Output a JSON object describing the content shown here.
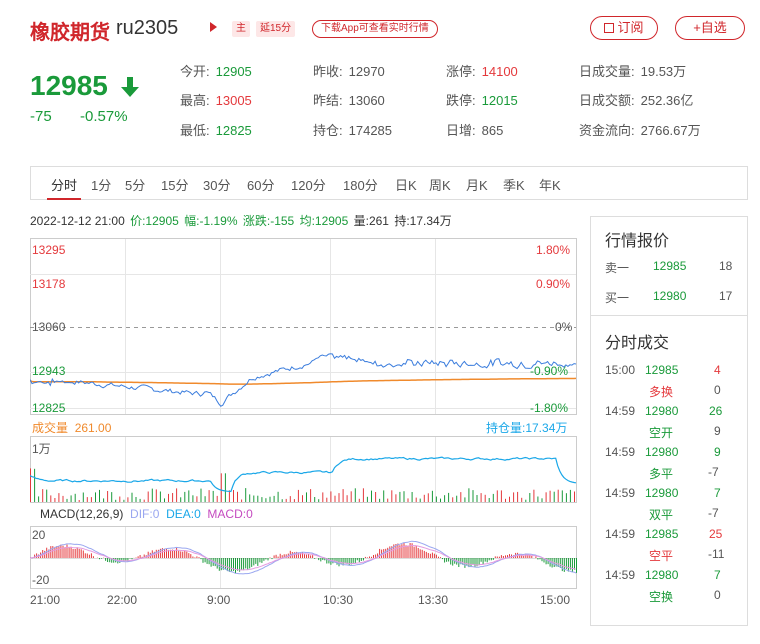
{
  "header": {
    "title": "橡胶期货",
    "code": "ru2305",
    "tag_main": "主",
    "tag_delay": "延15分",
    "download": "下载App可查看实时行情",
    "subscribe": "订阅",
    "add_watch": "+自选"
  },
  "quote": {
    "price": "12985",
    "change": "-75",
    "change_pct": "-0.57%"
  },
  "stats": [
    {
      "label": "今开:",
      "value": "12905",
      "color": "green"
    },
    {
      "label": "昨收:",
      "value": "12970",
      "color": "gray"
    },
    {
      "label": "涨停:",
      "value": "14100",
      "color": "red"
    },
    {
      "label": "日成交量:",
      "value": "19.53万",
      "color": "gray"
    },
    {
      "label": "最高:",
      "value": "13005",
      "color": "red"
    },
    {
      "label": "昨结:",
      "value": "13060",
      "color": "gray"
    },
    {
      "label": "跌停:",
      "value": "12015",
      "color": "green"
    },
    {
      "label": "日成交额:",
      "value": "252.36亿",
      "color": "gray"
    },
    {
      "label": "最低:",
      "value": "12825",
      "color": "green"
    },
    {
      "label": "持仓:",
      "value": "174285",
      "color": "gray"
    },
    {
      "label": "日增:",
      "value": "865",
      "color": "gray"
    },
    {
      "label": "资金流向:",
      "value": "2766.67万",
      "color": "gray"
    }
  ],
  "tabs": [
    "分时",
    "1分",
    "5分",
    "15分",
    "30分",
    "60分",
    "120分",
    "180分",
    "日K",
    "周K",
    "月K",
    "季K",
    "年K"
  ],
  "info_bar": {
    "datetime": "2022-12-12 21:00",
    "price": "价:12905",
    "amp": "幅:-1.19%",
    "chg": "涨跌:-155",
    "avg": "均:12905",
    "vol": "量:261",
    "oi": "持:17.34万"
  },
  "chart": {
    "y_left": [
      "13295",
      "13178",
      "13060",
      "12943",
      "12825"
    ],
    "y_right": [
      "1.80%",
      "0.90%",
      "0%",
      "-0.90%",
      "-1.80%"
    ],
    "volume_label": "成交量",
    "volume_value": "261.00",
    "oi_label": "持仓量:17.34万",
    "vol_axis": "1万",
    "macd_label": "MACD(12,26,9)",
    "dif": "DIF:0",
    "dea": "DEA:0",
    "macd": "MACD:0",
    "macd_top": "20",
    "macd_bottom": "-20",
    "x_labels": [
      "21:00",
      "22:00",
      "9:00",
      "10:30",
      "13:30",
      "15:00"
    ],
    "colors": {
      "price": "#3b7ddd",
      "avg": "#f08a2c",
      "oi": "#1aa7e8",
      "up": "#e4393c",
      "down": "#1a9a3a"
    }
  },
  "panel": {
    "quote_title": "行情报价",
    "sell_label": "卖一",
    "sell_price": "12985",
    "sell_qty": "18",
    "buy_label": "买一",
    "buy_price": "12980",
    "buy_qty": "17",
    "trades_title": "分时成交",
    "trades": [
      {
        "time": "15:00",
        "price": "12985",
        "vol": "4",
        "vol_color": "red",
        "type": "多换",
        "type_color": "red",
        "oi": "0"
      },
      {
        "time": "14:59",
        "price": "12980",
        "vol": "26",
        "vol_color": "green",
        "type": "空开",
        "type_color": "green",
        "oi": "9"
      },
      {
        "time": "14:59",
        "price": "12980",
        "vol": "9",
        "vol_color": "green",
        "type": "多平",
        "type_color": "green",
        "oi": "-7"
      },
      {
        "time": "14:59",
        "price": "12980",
        "vol": "7",
        "vol_color": "green",
        "type": "双平",
        "type_color": "green",
        "oi": "-7"
      },
      {
        "time": "14:59",
        "price": "12985",
        "vol": "25",
        "vol_color": "red",
        "type": "空平",
        "type_color": "red",
        "oi": "-11"
      },
      {
        "time": "14:59",
        "price": "12980",
        "vol": "7",
        "vol_color": "green",
        "type": "空换",
        "type_color": "green",
        "oi": "0"
      }
    ]
  }
}
